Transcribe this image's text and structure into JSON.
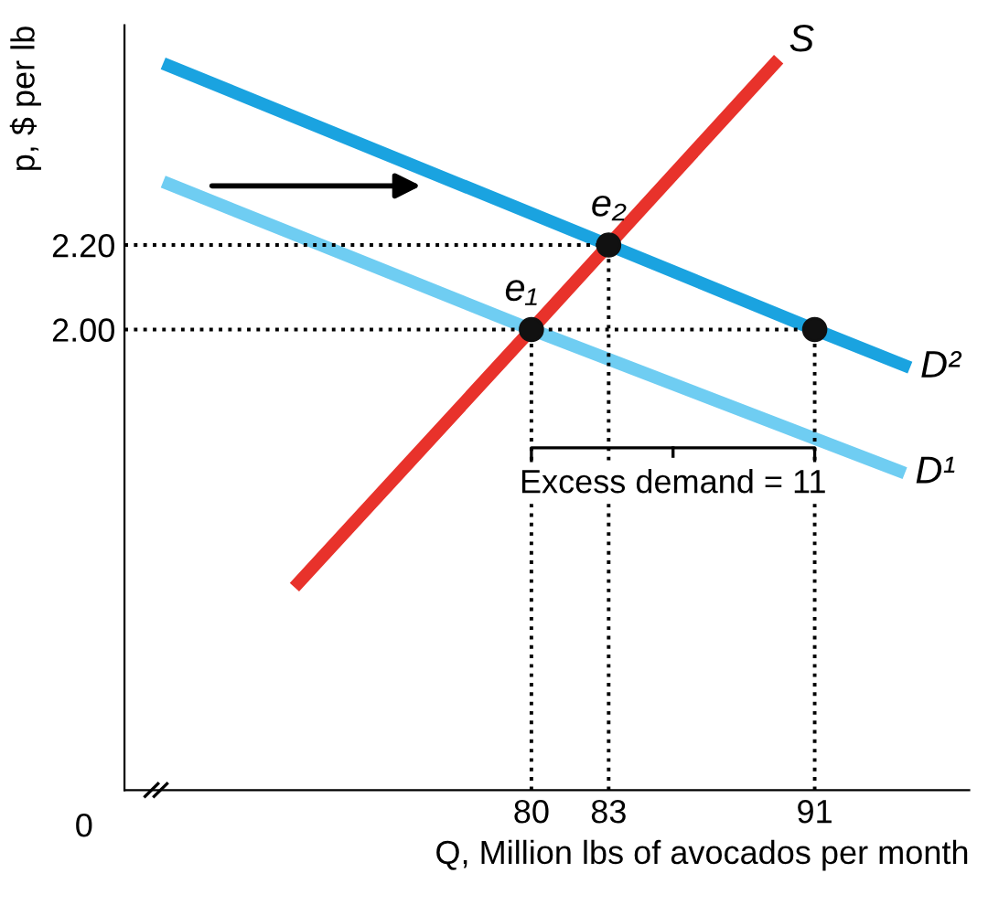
{
  "chart_data": {
    "type": "line",
    "xlabel": "Q, Million lbs of avocados per month",
    "ylabel": "p, $ per lb",
    "xlim": [
      64.2,
      97
    ],
    "ylim": [
      0.91,
      2.72
    ],
    "xticks": [
      80,
      83,
      91
    ],
    "yticks": [
      {
        "value": 2.0,
        "label": "2.00"
      },
      {
        "value": 2.2,
        "label": "2.20"
      }
    ],
    "grid": false,
    "legend": false,
    "marker": "none",
    "line_style": "solid",
    "series": [
      {
        "name": "S",
        "color": "#e8322b",
        "x": [
          70.8,
          80,
          83,
          89.6
        ],
        "values": [
          1.39,
          2.0,
          2.2,
          2.64
        ]
      },
      {
        "name": "D²",
        "color": "#1aa3e0",
        "x": [
          65.7,
          83,
          91,
          94.7
        ],
        "values": [
          2.63,
          2.2,
          2.0,
          1.91
        ]
      },
      {
        "name": "D¹",
        "color": "#6fcdf2",
        "x": [
          65.7,
          80,
          94.5
        ],
        "values": [
          2.35,
          2.0,
          1.66
        ]
      },
      {
        "type": "line",
        "color": "#000000",
        "line_style": "dotted",
        "x": [
          64.2,
          91
        ],
        "values": [
          2.0,
          2.0
        ]
      },
      {
        "type": "line",
        "color": "#000000",
        "line_style": "dotted",
        "x": [
          64.2,
          83
        ],
        "values": [
          2.2,
          2.2
        ]
      },
      {
        "type": "line",
        "color": "#000000",
        "line_style": "dotted",
        "x": [
          80,
          80
        ],
        "values": [
          0.91,
          2.0
        ]
      },
      {
        "type": "line",
        "color": "#000000",
        "line_style": "dotted",
        "x": [
          83,
          83
        ],
        "values": [
          0.91,
          2.2
        ]
      },
      {
        "type": "line",
        "color": "#000000",
        "line_style": "dotted",
        "x": [
          91,
          91
        ],
        "values": [
          0.91,
          2.0
        ]
      },
      {
        "type": "scatter",
        "color": "#111111",
        "marker": "circle",
        "x": [
          80,
          83,
          91
        ],
        "values": [
          2.0,
          2.2,
          2.0
        ]
      }
    ],
    "annotations": [
      {
        "text": "e₁",
        "x": 80,
        "y": 2.0
      },
      {
        "text": "e₂",
        "x": 83,
        "y": 2.2
      },
      "Excess demand = 11",
      "0"
    ]
  }
}
